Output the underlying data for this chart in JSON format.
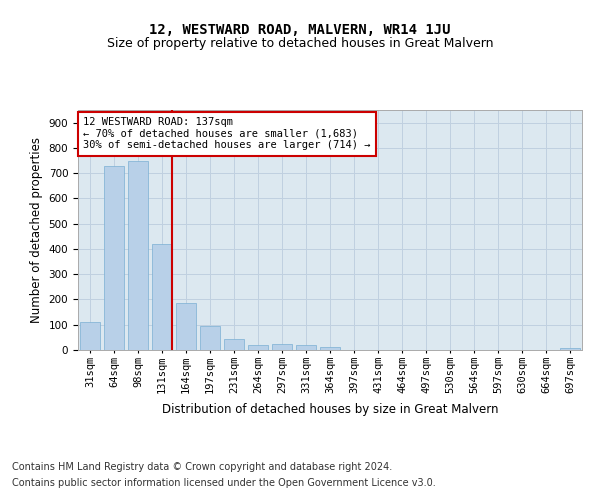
{
  "title": "12, WESTWARD ROAD, MALVERN, WR14 1JU",
  "subtitle": "Size of property relative to detached houses in Great Malvern",
  "xlabel": "Distribution of detached houses by size in Great Malvern",
  "ylabel": "Number of detached properties",
  "categories": [
    "31sqm",
    "64sqm",
    "98sqm",
    "131sqm",
    "164sqm",
    "197sqm",
    "231sqm",
    "264sqm",
    "297sqm",
    "331sqm",
    "364sqm",
    "397sqm",
    "431sqm",
    "464sqm",
    "497sqm",
    "530sqm",
    "564sqm",
    "597sqm",
    "630sqm",
    "664sqm",
    "697sqm"
  ],
  "values": [
    110,
    730,
    750,
    420,
    185,
    95,
    42,
    20,
    22,
    20,
    13,
    0,
    0,
    0,
    0,
    0,
    0,
    0,
    0,
    0,
    7
  ],
  "bar_color": "#b8d0e8",
  "bar_edge_color": "#7aafd4",
  "marker_line_color": "#cc0000",
  "annotation_line1": "12 WESTWARD ROAD: 137sqm",
  "annotation_line2": "← 70% of detached houses are smaller (1,683)",
  "annotation_line3": "30% of semi-detached houses are larger (714) →",
  "annotation_box_color": "white",
  "annotation_box_edge_color": "#cc0000",
  "footer_line1": "Contains HM Land Registry data © Crown copyright and database right 2024.",
  "footer_line2": "Contains public sector information licensed under the Open Government Licence v3.0.",
  "ylim": [
    0,
    950
  ],
  "yticks": [
    0,
    100,
    200,
    300,
    400,
    500,
    600,
    700,
    800,
    900
  ],
  "grid_color": "#c0d0e0",
  "plot_bg_color": "#dce8f0",
  "title_fontsize": 10,
  "subtitle_fontsize": 9,
  "axis_label_fontsize": 8.5,
  "tick_fontsize": 7.5,
  "annotation_fontsize": 7.5,
  "footer_fontsize": 7
}
